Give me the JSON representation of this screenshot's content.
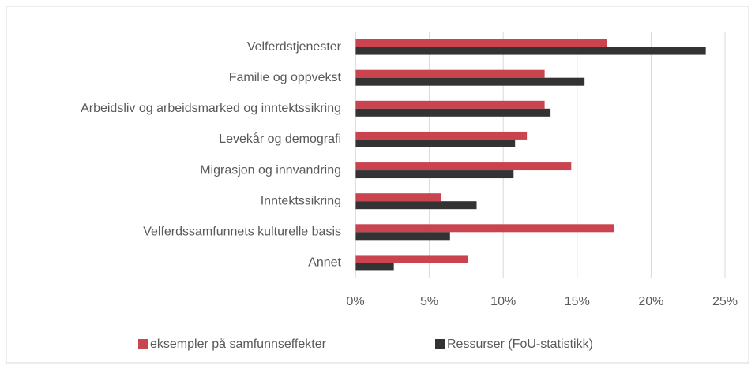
{
  "chart_data": {
    "type": "barh",
    "categories": [
      "Velferdstjenester",
      "Familie og oppvekst",
      "Arbeidsliv og arbeidsmarked og inntektssikring",
      "Levekår og demografi",
      "Migrasjon og innvandring",
      "Inntektssikring",
      "Velferdssamfunnets kulturelle basis",
      "Annet"
    ],
    "series": [
      {
        "name": "eksempler på samfunnseffekter",
        "color": "#c9444f",
        "values": [
          17.0,
          12.8,
          12.8,
          11.6,
          14.6,
          5.8,
          17.5,
          7.6
        ]
      },
      {
        "name": "Ressurser (FoU-statistikk)",
        "color": "#333333",
        "values": [
          23.7,
          15.5,
          13.2,
          10.8,
          10.7,
          8.2,
          6.4,
          2.6
        ]
      }
    ],
    "xlim": [
      0,
      25
    ],
    "xticks": [
      {
        "value": 0,
        "label": "0%"
      },
      {
        "value": 5,
        "label": "5%"
      },
      {
        "value": 10,
        "label": "10%"
      },
      {
        "value": 15,
        "label": "15%"
      },
      {
        "value": 20,
        "label": "20%"
      },
      {
        "value": 25,
        "label": "25%"
      }
    ],
    "grid": true,
    "legend": "bottom"
  }
}
